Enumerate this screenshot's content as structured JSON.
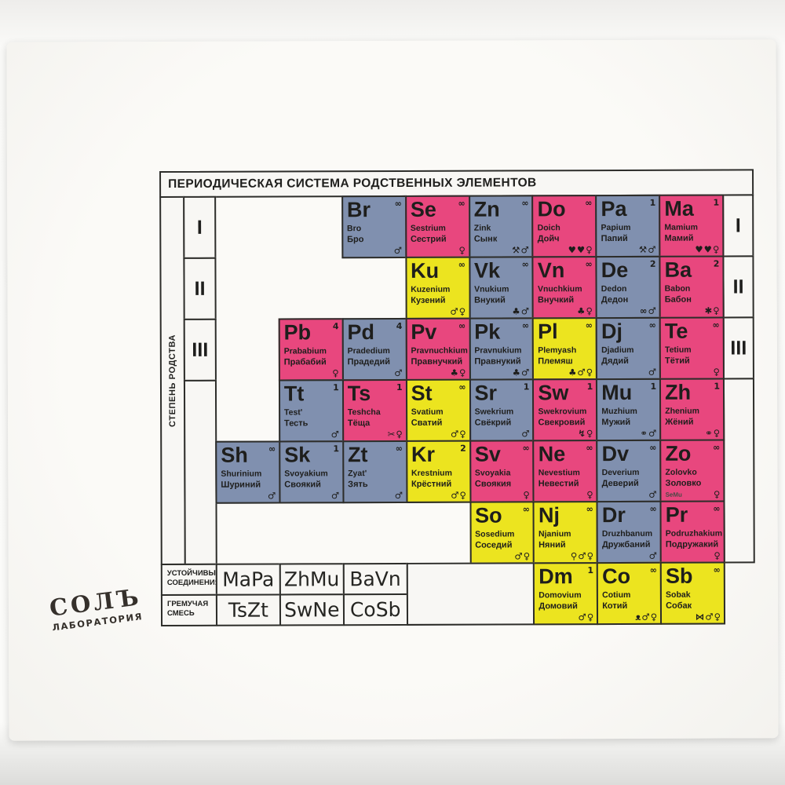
{
  "card": {
    "title": "ПЕРИОДИЧЕСКАЯ СИСТЕМА РОДСТВЕННЫХ ЭЛЕМЕНТОВ",
    "axis_label": "СТЕПЕНЬ РОДСТВА",
    "period_labels": [
      "I",
      "II",
      "III"
    ],
    "colors": {
      "pink": "#e8477e",
      "blue": "#8090af",
      "yellow": "#ece41f",
      "line": "#2d2d2a",
      "text": "#1e1e1c"
    },
    "elements": [
      {
        "symbol": "Br",
        "latin": "Bro",
        "russian": "Бро",
        "color": "blue",
        "degree": "∞",
        "icons": [
          "male"
        ],
        "row": 1,
        "col": 3
      },
      {
        "symbol": "Se",
        "latin": "Sestrium",
        "russian": "Сестрий",
        "color": "pink",
        "degree": "∞",
        "icons": [
          "female"
        ],
        "row": 1,
        "col": 4
      },
      {
        "symbol": "Zn",
        "latin": "Zink",
        "russian": "Сынк",
        "color": "blue",
        "degree": "∞",
        "icons": [
          "tools",
          "male"
        ],
        "row": 1,
        "col": 5
      },
      {
        "symbol": "Do",
        "latin": "Doich",
        "russian": "Дойч",
        "color": "pink",
        "degree": "∞",
        "icons": [
          "hearts",
          "female"
        ],
        "row": 1,
        "col": 6
      },
      {
        "symbol": "Pa",
        "latin": "Papium",
        "russian": "Папий",
        "color": "blue",
        "degree": "1",
        "icons": [
          "tools",
          "male"
        ],
        "row": 1,
        "col": 7
      },
      {
        "symbol": "Ma",
        "latin": "Mamium",
        "russian": "Мамий",
        "color": "pink",
        "degree": "1",
        "icons": [
          "hearts",
          "female"
        ],
        "row": 1,
        "col": 8
      },
      {
        "symbol": "Ku",
        "latin": "Kuzenium",
        "russian": "Кузений",
        "color": "yellow",
        "degree": "∞",
        "icons": [
          "male",
          "female"
        ],
        "row": 2,
        "col": 4
      },
      {
        "symbol": "Vk",
        "latin": "Vnukium",
        "russian": "Внукий",
        "color": "blue",
        "degree": "∞",
        "icons": [
          "balloons",
          "male"
        ],
        "row": 2,
        "col": 5
      },
      {
        "symbol": "Vn",
        "latin": "Vnuchkium",
        "russian": "Внучкий",
        "color": "pink",
        "degree": "∞",
        "icons": [
          "balloons",
          "female"
        ],
        "row": 2,
        "col": 6
      },
      {
        "symbol": "De",
        "latin": "Dedon",
        "russian": "Дедон",
        "color": "blue",
        "degree": "2",
        "icons": [
          "glasses",
          "male"
        ],
        "row": 2,
        "col": 7
      },
      {
        "symbol": "Ba",
        "latin": "Babon",
        "russian": "Бабон",
        "color": "pink",
        "degree": "2",
        "icons": [
          "yarn",
          "female"
        ],
        "row": 2,
        "col": 8
      },
      {
        "symbol": "Pb",
        "latin": "Prababium",
        "russian": "Прабабий",
        "color": "pink",
        "degree": "4",
        "icons": [
          "female"
        ],
        "row": 3,
        "col": 2
      },
      {
        "symbol": "Pd",
        "latin": "Pradedium",
        "russian": "Прадедий",
        "color": "blue",
        "degree": "4",
        "icons": [
          "male"
        ],
        "row": 3,
        "col": 3
      },
      {
        "symbol": "Pv",
        "latin": "Pravnuchkium",
        "russian": "Правнучкий",
        "color": "pink",
        "degree": "∞",
        "icons": [
          "balloons",
          "female"
        ],
        "row": 3,
        "col": 4
      },
      {
        "symbol": "Pk",
        "latin": "Pravnukium",
        "russian": "Правнукий",
        "color": "blue",
        "degree": "∞",
        "icons": [
          "balloons",
          "male"
        ],
        "row": 3,
        "col": 5
      },
      {
        "symbol": "Pl",
        "latin": "Plemyash",
        "russian": "Племяш",
        "color": "yellow",
        "degree": "∞",
        "icons": [
          "balloons",
          "male",
          "female"
        ],
        "row": 3,
        "col": 6
      },
      {
        "symbol": "Dj",
        "latin": "Djadium",
        "russian": "Дядий",
        "color": "blue",
        "degree": "∞",
        "icons": [
          "male"
        ],
        "row": 3,
        "col": 7
      },
      {
        "symbol": "Te",
        "latin": "Tetium",
        "russian": "Тётий",
        "color": "pink",
        "degree": "∞",
        "icons": [
          "female"
        ],
        "row": 3,
        "col": 8
      },
      {
        "symbol": "Tt",
        "latin": "Test'",
        "russian": "Тесть",
        "color": "blue",
        "degree": "1",
        "icons": [
          "male"
        ],
        "row": 4,
        "col": 2
      },
      {
        "symbol": "Ts",
        "latin": "Teshcha",
        "russian": "Тёща",
        "color": "pink",
        "degree": "1",
        "icons": [
          "scissors",
          "female"
        ],
        "row": 4,
        "col": 3
      },
      {
        "symbol": "St",
        "latin": "Svatium",
        "russian": "Сватий",
        "color": "yellow",
        "degree": "∞",
        "icons": [
          "male",
          "female"
        ],
        "row": 4,
        "col": 4
      },
      {
        "symbol": "Sr",
        "latin": "Swekrium",
        "russian": "Свёкрий",
        "color": "blue",
        "degree": "1",
        "icons": [
          "male"
        ],
        "row": 4,
        "col": 5
      },
      {
        "symbol": "Sw",
        "latin": "Swekrovium",
        "russian": "Свекровий",
        "color": "pink",
        "degree": "1",
        "icons": [
          "lightning",
          "female"
        ],
        "row": 4,
        "col": 6
      },
      {
        "symbol": "Mu",
        "latin": "Muzhium",
        "russian": "Мужий",
        "color": "blue",
        "degree": "1",
        "icons": [
          "rings",
          "male"
        ],
        "row": 4,
        "col": 7
      },
      {
        "symbol": "Zh",
        "latin": "Zhenium",
        "russian": "Жёний",
        "color": "pink",
        "degree": "1",
        "icons": [
          "rings",
          "female"
        ],
        "row": 4,
        "col": 8
      },
      {
        "symbol": "Sh",
        "latin": "Shurinium",
        "russian": "Шуриний",
        "color": "blue",
        "degree": "∞",
        "icons": [
          "male"
        ],
        "row": 5,
        "col": 1
      },
      {
        "symbol": "Sk",
        "latin": "Svoyakium",
        "russian": "Своякий",
        "color": "blue",
        "degree": "1",
        "icons": [
          "male"
        ],
        "row": 5,
        "col": 2
      },
      {
        "symbol": "Zt",
        "latin": "Zyat'",
        "russian": "Зять",
        "color": "blue",
        "degree": "∞",
        "icons": [
          "male"
        ],
        "row": 5,
        "col": 3
      },
      {
        "symbol": "Kr",
        "latin": "Krestnium",
        "russian": "Крёстний",
        "color": "yellow",
        "degree": "2",
        "icons": [
          "male",
          "female"
        ],
        "row": 5,
        "col": 4
      },
      {
        "symbol": "Sv",
        "latin": "Svoyakia",
        "russian": "Своякия",
        "color": "pink",
        "degree": "∞",
        "icons": [
          "female"
        ],
        "row": 5,
        "col": 5
      },
      {
        "symbol": "Ne",
        "latin": "Nevestium",
        "russian": "Невестий",
        "color": "pink",
        "degree": "∞",
        "icons": [
          "female"
        ],
        "row": 5,
        "col": 6
      },
      {
        "symbol": "Dv",
        "latin": "Deverium",
        "russian": "Деверий",
        "color": "blue",
        "degree": "∞",
        "icons": [
          "male"
        ],
        "row": 5,
        "col": 7
      },
      {
        "symbol": "Zo",
        "latin": "Zolovko",
        "russian": "Золовко",
        "color": "pink",
        "degree": "∞",
        "icons": [
          "female"
        ],
        "note": "SeMu",
        "row": 5,
        "col": 8
      },
      {
        "symbol": "So",
        "latin": "Sosedium",
        "russian": "Соседий",
        "color": "yellow",
        "degree": "∞",
        "icons": [
          "male",
          "female"
        ],
        "row": 6,
        "col": 5
      },
      {
        "symbol": "Nj",
        "latin": "Njanium",
        "russian": "Няний",
        "color": "yellow",
        "degree": "∞",
        "icons": [
          "pacifier",
          "male",
          "female"
        ],
        "row": 6,
        "col": 6
      },
      {
        "symbol": "Dr",
        "latin": "Druzhbanum",
        "russian": "Дружбаний",
        "color": "blue",
        "degree": "∞",
        "icons": [
          "male"
        ],
        "row": 6,
        "col": 7
      },
      {
        "symbol": "Pr",
        "latin": "Podruzhakium",
        "russian": "Подружакий",
        "color": "pink",
        "degree": "∞",
        "icons": [
          "female"
        ],
        "row": 6,
        "col": 8
      },
      {
        "symbol": "Dm",
        "latin": "Domovium",
        "russian": "Домовий",
        "color": "yellow",
        "degree": "1",
        "icons": [
          "male",
          "female"
        ],
        "row": 7,
        "col": 6
      },
      {
        "symbol": "Co",
        "latin": "Cotium",
        "russian": "Котий",
        "color": "yellow",
        "degree": "∞",
        "icons": [
          "mouse",
          "male",
          "female"
        ],
        "row": 7,
        "col": 7
      },
      {
        "symbol": "Sb",
        "latin": "Sobak",
        "russian": "Собак",
        "color": "yellow",
        "degree": "∞",
        "icons": [
          "bone",
          "male",
          "female"
        ],
        "row": 7,
        "col": 8
      }
    ],
    "compounds": {
      "rows": [
        {
          "label": "УСТОЙЧИВЫЕ\nСОЕДИНЕНИЯ",
          "formulas": [
            "MaPa",
            "ZhMu",
            "BaVn"
          ]
        },
        {
          "label": "ГРЕМУЧАЯ\nСМЕСЬ",
          "formulas": [
            "TsZt",
            "SwNe",
            "CoSb"
          ]
        }
      ]
    },
    "logo": {
      "name": "СОЛЪ",
      "sub": "ЛАБОРАТОРИЯ"
    }
  }
}
